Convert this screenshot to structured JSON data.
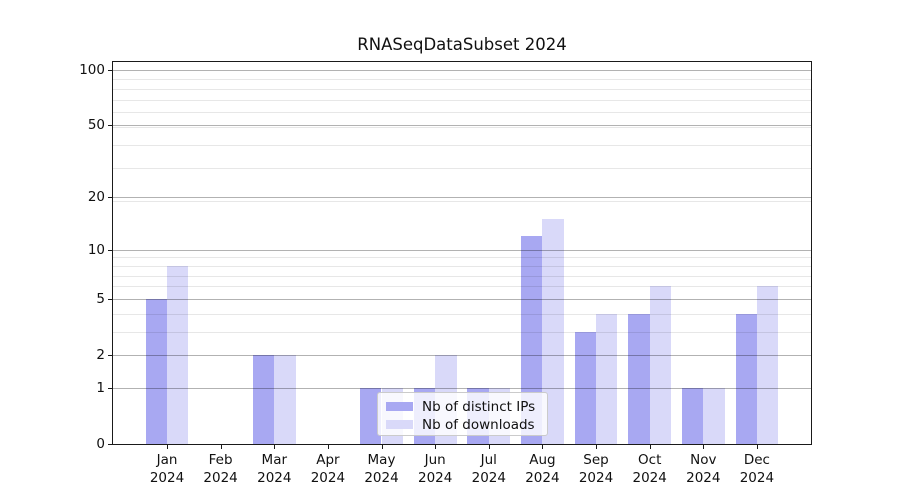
{
  "figure": {
    "title": "RNASeqDataSubset 2024"
  },
  "chart_data": {
    "type": "bar",
    "title": "RNASeqDataSubset 2024",
    "categories": [
      "Jan",
      "Feb",
      "Mar",
      "Apr",
      "May",
      "Jun",
      "Jul",
      "Aug",
      "Sep",
      "Oct",
      "Nov",
      "Dec"
    ],
    "category_year": "2024",
    "series": [
      {
        "name": "Nb of distinct IPs",
        "color": "#a8a8f2",
        "values": [
          5,
          0,
          2,
          0,
          1,
          1,
          1,
          12,
          3,
          4,
          1,
          4
        ]
      },
      {
        "name": "Nb of downloads",
        "color": "#d9d9f9",
        "values": [
          8,
          0,
          2,
          0,
          1,
          2,
          1,
          15,
          4,
          6,
          1,
          6
        ]
      }
    ],
    "y_axis": {
      "scale": "log10(1+x)",
      "major_ticks": [
        0,
        1,
        2,
        5,
        10,
        20,
        50,
        100
      ],
      "minor_ticks": [
        3,
        4,
        6,
        7,
        8,
        9,
        19,
        29,
        39,
        49,
        59,
        69,
        79,
        89
      ],
      "ylim": [
        0,
        110
      ]
    },
    "x_axis": {
      "tick_label_lines": 2
    },
    "grid": "on",
    "legend_position": "lower center-left inside plot"
  }
}
